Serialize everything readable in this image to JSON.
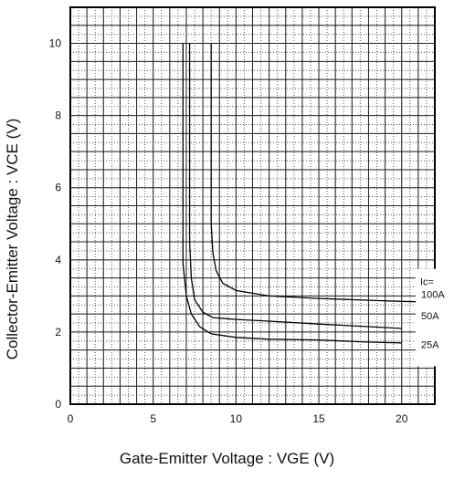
{
  "chart_data": {
    "type": "line",
    "title": "",
    "xlabel": "Gate-Emitter Voltage : VGE (V)",
    "ylabel": "Collector-Emitter Voltage : VCE (V)",
    "xlim": [
      0,
      22
    ],
    "ylim": [
      0,
      11
    ],
    "x_ticks": [
      "0",
      "5",
      "10",
      "15",
      "20"
    ],
    "y_ticks": [
      "0",
      "2",
      "4",
      "6",
      "8",
      "10"
    ],
    "grid": true,
    "legend_title": "Ic=",
    "series": [
      {
        "name": "100A",
        "x": [
          8.5,
          8.5,
          8.6,
          8.8,
          9.2,
          10,
          12,
          15,
          18,
          20,
          22
        ],
        "y": [
          10,
          5.0,
          4.2,
          3.7,
          3.35,
          3.15,
          3.0,
          2.93,
          2.88,
          2.85,
          2.83
        ]
      },
      {
        "name": "50A",
        "x": [
          7.2,
          7.2,
          7.3,
          7.5,
          8.0,
          8.6,
          10,
          12,
          15,
          18,
          20
        ],
        "y": [
          10,
          4.5,
          3.5,
          2.9,
          2.55,
          2.4,
          2.35,
          2.3,
          2.22,
          2.15,
          2.1
        ]
      },
      {
        "name": "25A",
        "x": [
          6.8,
          6.8,
          7.0,
          7.3,
          7.8,
          8.5,
          10,
          12,
          15,
          18,
          20
        ],
        "y": [
          10,
          3.9,
          3.0,
          2.5,
          2.15,
          1.95,
          1.85,
          1.8,
          1.78,
          1.72,
          1.7
        ]
      }
    ]
  }
}
